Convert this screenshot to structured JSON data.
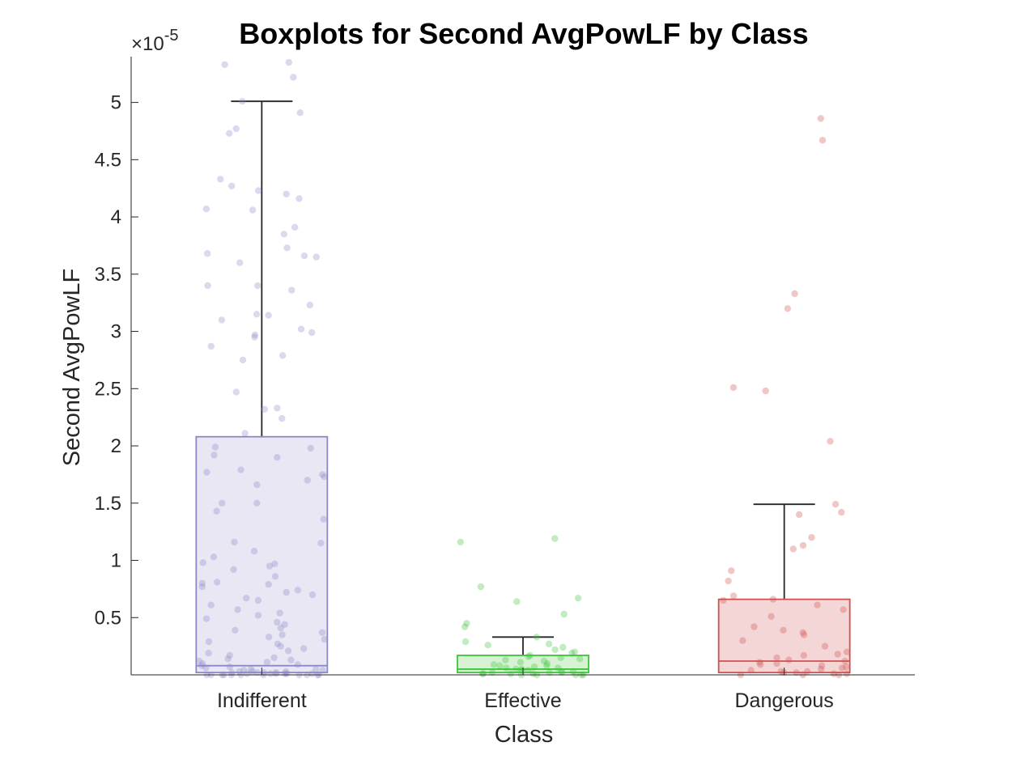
{
  "chart_data": {
    "type": "boxplot",
    "title": "Boxplots for Second AvgPowLF by Class",
    "xlabel": "Class",
    "ylabel": "Second AvgPowLF",
    "exponent_label": "×10",
    "exponent_power": "-5",
    "ylim": [
      0,
      5.4
    ],
    "yticks": [
      0.5,
      1,
      1.5,
      2,
      2.5,
      3,
      3.5,
      4,
      4.5,
      5
    ],
    "ytick_labels": [
      "0.5",
      "1",
      "1.5",
      "2",
      "2.5",
      "3",
      "3.5",
      "4",
      "4.5",
      "5"
    ],
    "categories": [
      "Indifferent",
      "Effective",
      "Dangerous"
    ],
    "series": [
      {
        "category": "Indifferent",
        "color": "#8B88C6",
        "fill": "#E8E7F3",
        "q1": 0.02,
        "median": 0.08,
        "q3": 2.08,
        "whisker_low": 0.0,
        "whisker_high": 5.01,
        "points": [
          5.35,
          5.33,
          5.22,
          5.01,
          4.91,
          4.77,
          4.73,
          4.33,
          4.27,
          4.23,
          4.2,
          4.16,
          4.07,
          4.06,
          3.91,
          3.85,
          3.73,
          3.68,
          3.66,
          3.65,
          3.6,
          3.4,
          3.4,
          3.36,
          3.23,
          3.15,
          3.14,
          3.1,
          3.02,
          2.99,
          2.97,
          2.95,
          2.87,
          2.79,
          2.75,
          2.47,
          2.33,
          2.32,
          2.24,
          2.11,
          1.99,
          1.98,
          1.92,
          1.9,
          1.79,
          1.77,
          1.75,
          1.73,
          1.7,
          1.66,
          1.5,
          1.5,
          1.43,
          1.36,
          1.16,
          1.15,
          1.08,
          1.03,
          0.98,
          0.97,
          0.95,
          0.92,
          0.86,
          0.81,
          0.8,
          0.79,
          0.77,
          0.74,
          0.72,
          0.7,
          0.67,
          0.65,
          0.61,
          0.57,
          0.54,
          0.52,
          0.49,
          0.46,
          0.44,
          0.41,
          0.39,
          0.37,
          0.35,
          0.33,
          0.31,
          0.29,
          0.27,
          0.25,
          0.23,
          0.21,
          0.19,
          0.17,
          0.15,
          0.14,
          0.13,
          0.12,
          0.11,
          0.1,
          0.09,
          0.08,
          0.07,
          0.06,
          0.05,
          0.05,
          0.04,
          0.04,
          0.03,
          0.03,
          0.03,
          0.02,
          0.02,
          0.02,
          0.02,
          0.01,
          0.01,
          0.01,
          0.01,
          0.01,
          0.01,
          0.0,
          0.0,
          0.0,
          0.0,
          0.0,
          0.0,
          0.0,
          0.0,
          0.0,
          0.0,
          0.0
        ]
      },
      {
        "category": "Effective",
        "color": "#3CC43C",
        "fill": "#D6F2D3",
        "q1": 0.02,
        "median": 0.05,
        "q3": 0.17,
        "whisker_low": 0.0,
        "whisker_high": 0.33,
        "points": [
          1.19,
          1.16,
          0.77,
          0.67,
          0.64,
          0.53,
          0.45,
          0.42,
          0.33,
          0.29,
          0.27,
          0.26,
          0.24,
          0.22,
          0.2,
          0.19,
          0.17,
          0.16,
          0.15,
          0.14,
          0.13,
          0.12,
          0.11,
          0.1,
          0.09,
          0.08,
          0.08,
          0.07,
          0.06,
          0.06,
          0.05,
          0.05,
          0.04,
          0.04,
          0.03,
          0.03,
          0.02,
          0.02,
          0.02,
          0.01,
          0.01,
          0.01,
          0.01,
          0.0,
          0.0,
          0.0,
          0.0,
          0.0
        ]
      },
      {
        "category": "Dangerous",
        "color": "#D05050",
        "fill": "#F4D6D6",
        "q1": 0.02,
        "median": 0.12,
        "q3": 0.66,
        "whisker_low": 0.0,
        "whisker_high": 1.49,
        "points": [
          4.86,
          4.67,
          3.33,
          3.2,
          2.51,
          2.48,
          2.04,
          1.49,
          1.42,
          1.4,
          1.2,
          1.13,
          1.1,
          0.91,
          0.82,
          0.69,
          0.66,
          0.65,
          0.61,
          0.57,
          0.51,
          0.42,
          0.39,
          0.37,
          0.35,
          0.3,
          0.25,
          0.2,
          0.18,
          0.17,
          0.15,
          0.13,
          0.12,
          0.11,
          0.1,
          0.09,
          0.08,
          0.07,
          0.06,
          0.05,
          0.04,
          0.03,
          0.03,
          0.02,
          0.02,
          0.01,
          0.01,
          0.0,
          0.0,
          0.0
        ]
      }
    ],
    "whisker_cap_color": "#262626"
  }
}
